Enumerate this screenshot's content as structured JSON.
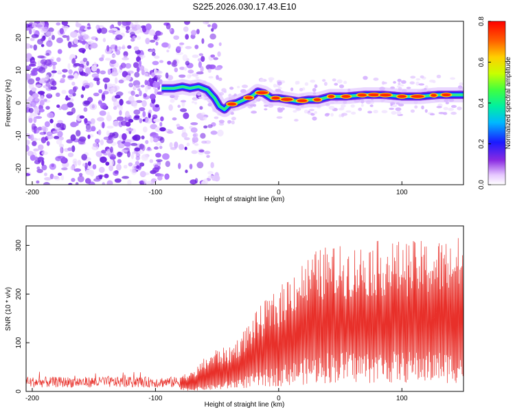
{
  "title": "S225.2026.030.17.43.E10",
  "chart_data": [
    {
      "type": "heatmap",
      "xlabel": "Height of straight line (km)",
      "ylabel": "Frequency (Hz)",
      "xlim": [
        -205,
        150
      ],
      "ylim": [
        -25,
        25
      ],
      "xticks": [
        -200,
        -100,
        0,
        100
      ],
      "yticks": [
        -20,
        -10,
        0,
        10,
        20
      ],
      "noise_region_x": [
        -205,
        -55
      ],
      "ridge": {
        "x": [
          -95,
          -85,
          -78,
          -72,
          -65,
          -58,
          -52,
          -48,
          -44,
          -40,
          -34,
          -28,
          -22,
          -17,
          -12,
          -6,
          0,
          8,
          16,
          24,
          32,
          42,
          55,
          70,
          85,
          100,
          115,
          130,
          150
        ],
        "freq": [
          4.5,
          4.5,
          5.0,
          4.5,
          5.0,
          4.0,
          1.5,
          -1.0,
          -2.0,
          -0.5,
          0.0,
          1.0,
          2.0,
          3.5,
          3.0,
          1.5,
          1.5,
          1.0,
          0.5,
          1.0,
          1.0,
          2.0,
          2.0,
          2.5,
          2.5,
          2.0,
          2.0,
          2.5,
          2.5
        ]
      },
      "colorbar": {
        "label": "Normalized spectral amplitude",
        "range": [
          0.0,
          0.8
        ],
        "ticks": [
          "0.0",
          "0.2",
          "0.4",
          "0.6",
          "0.8"
        ]
      }
    },
    {
      "type": "line",
      "xlabel": "Height of straight line (km)",
      "ylabel": "SNR (10 * v/v)",
      "xlim": [
        -205,
        150
      ],
      "ylim": [
        0,
        340
      ],
      "xticks": [
        -200,
        -100,
        0,
        100
      ],
      "yticks": [
        0,
        100,
        200,
        300
      ],
      "color": "#e8302a",
      "envelope": {
        "x": [
          -205,
          -80,
          -70,
          -60,
          -50,
          -40,
          -30,
          -20,
          -10,
          0,
          10,
          20,
          30,
          40,
          60,
          80,
          100,
          120,
          150
        ],
        "upper": [
          30,
          35,
          40,
          70,
          90,
          90,
          120,
          160,
          190,
          210,
          250,
          270,
          290,
          300,
          300,
          310,
          310,
          310,
          320
        ],
        "lower": [
          5,
          5,
          5,
          8,
          10,
          15,
          20,
          25,
          30,
          35,
          40,
          45,
          50,
          55,
          55,
          55,
          55,
          55,
          55
        ]
      }
    }
  ]
}
